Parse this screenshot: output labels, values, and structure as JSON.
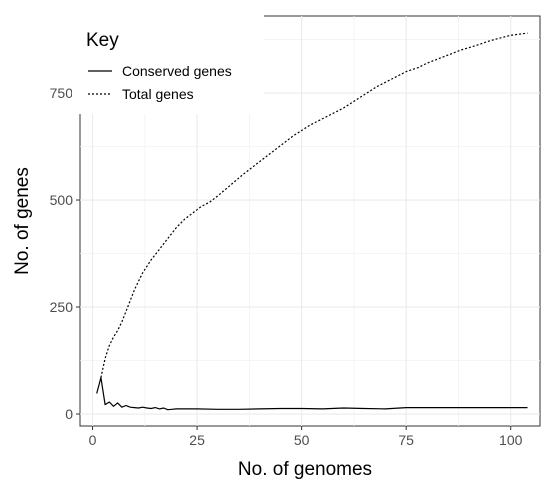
{
  "chart_data": {
    "type": "line",
    "xlabel": "No. of genomes",
    "ylabel": "No. of genes",
    "xlim": [
      -3,
      107
    ],
    "ylim": [
      -28,
      930
    ],
    "xticks": [
      0,
      25,
      50,
      75,
      100
    ],
    "yticks": [
      0,
      250,
      500,
      750
    ],
    "grid": true,
    "legend": {
      "title": "Key",
      "placement": "top-left"
    },
    "series": [
      {
        "name": "Conserved genes",
        "linestyle": "solid",
        "color": "#000000",
        "x": [
          1,
          2,
          3,
          4,
          5,
          6,
          7,
          8,
          9,
          10,
          11,
          12,
          13,
          14,
          15,
          16,
          17,
          18,
          19,
          20,
          22,
          25,
          30,
          35,
          40,
          45,
          50,
          55,
          60,
          65,
          70,
          75,
          80,
          85,
          90,
          95,
          100,
          104
        ],
        "values": [
          48,
          85,
          22,
          28,
          18,
          26,
          16,
          20,
          16,
          15,
          14,
          16,
          14,
          13,
          15,
          12,
          14,
          10,
          11,
          12,
          12,
          12,
          11,
          11,
          12,
          13,
          13,
          12,
          14,
          13,
          12,
          15,
          15,
          15,
          15,
          15,
          15,
          15
        ]
      },
      {
        "name": "Total genes",
        "linestyle": "dotted",
        "color": "#000000",
        "x": [
          2,
          3,
          4,
          5,
          6,
          7,
          8,
          9,
          10,
          11,
          12,
          14,
          16,
          18,
          20,
          22,
          24,
          26,
          28,
          30,
          33,
          36,
          40,
          44,
          48,
          52,
          56,
          60,
          64,
          68,
          72,
          75,
          78,
          80,
          84,
          88,
          92,
          95,
          98,
          100,
          104
        ],
        "values": [
          85,
          130,
          160,
          180,
          195,
          215,
          240,
          265,
          290,
          310,
          330,
          360,
          385,
          410,
          435,
          455,
          470,
          485,
          495,
          510,
          535,
          560,
          590,
          620,
          650,
          675,
          695,
          715,
          740,
          765,
          785,
          800,
          810,
          820,
          835,
          850,
          862,
          872,
          880,
          885,
          890
        ]
      }
    ]
  }
}
